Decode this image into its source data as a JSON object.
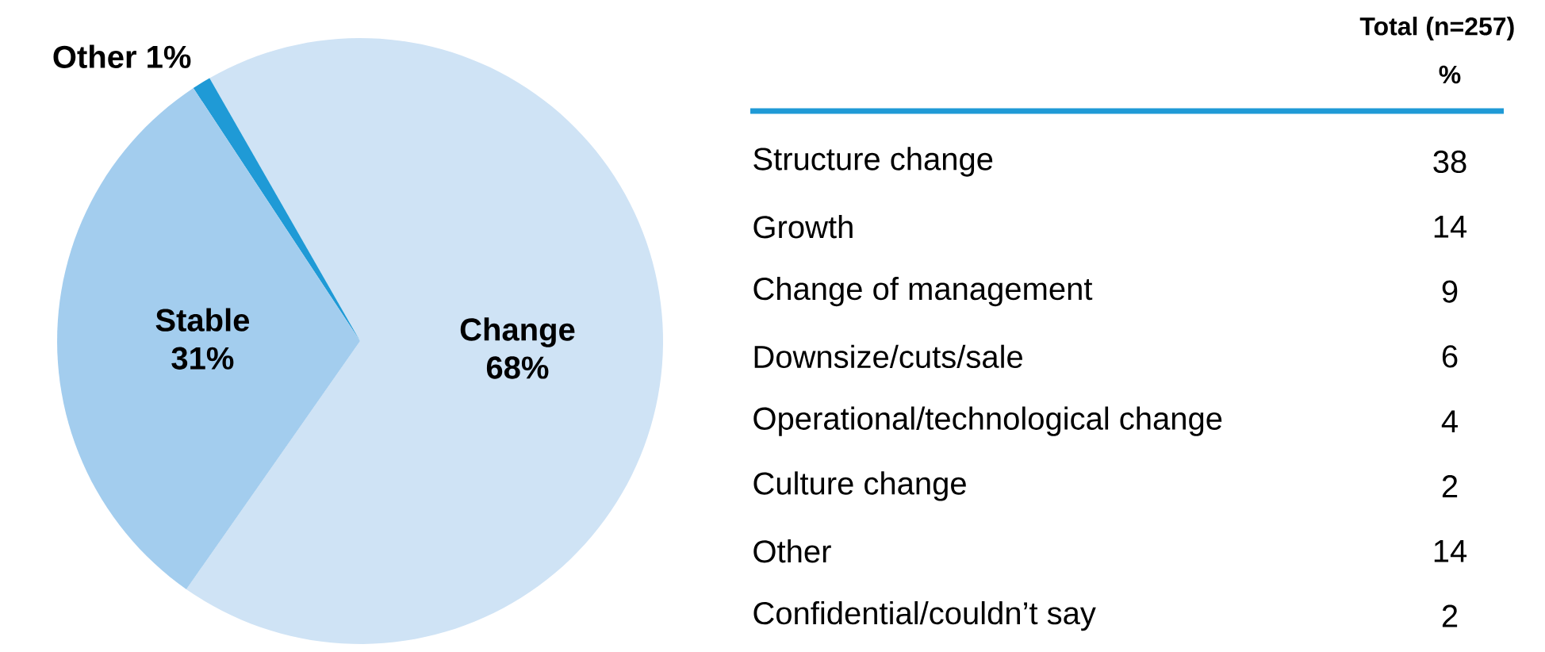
{
  "chart_data": [
    {
      "type": "pie",
      "categories": [
        "Change",
        "Other",
        "Stable"
      ],
      "values": [
        68,
        1,
        31
      ],
      "colors": [
        "#cfe3f5",
        "#1f9ad6",
        "#a3cdee"
      ],
      "value_labels": [
        "68%",
        "1%",
        "31%"
      ]
    },
    {
      "type": "other",
      "title": "Total (n=257)",
      "subtitle": "%",
      "categories": [
        "Structure change",
        "Growth",
        "Change of management",
        "Downsize/cuts/sale",
        "Operational/technological change",
        "Culture change",
        "Other",
        "Confidential/couldn’t say"
      ],
      "values": [
        38,
        14,
        9,
        6,
        4,
        2,
        14,
        2
      ],
      "data_labels": true
    }
  ]
}
